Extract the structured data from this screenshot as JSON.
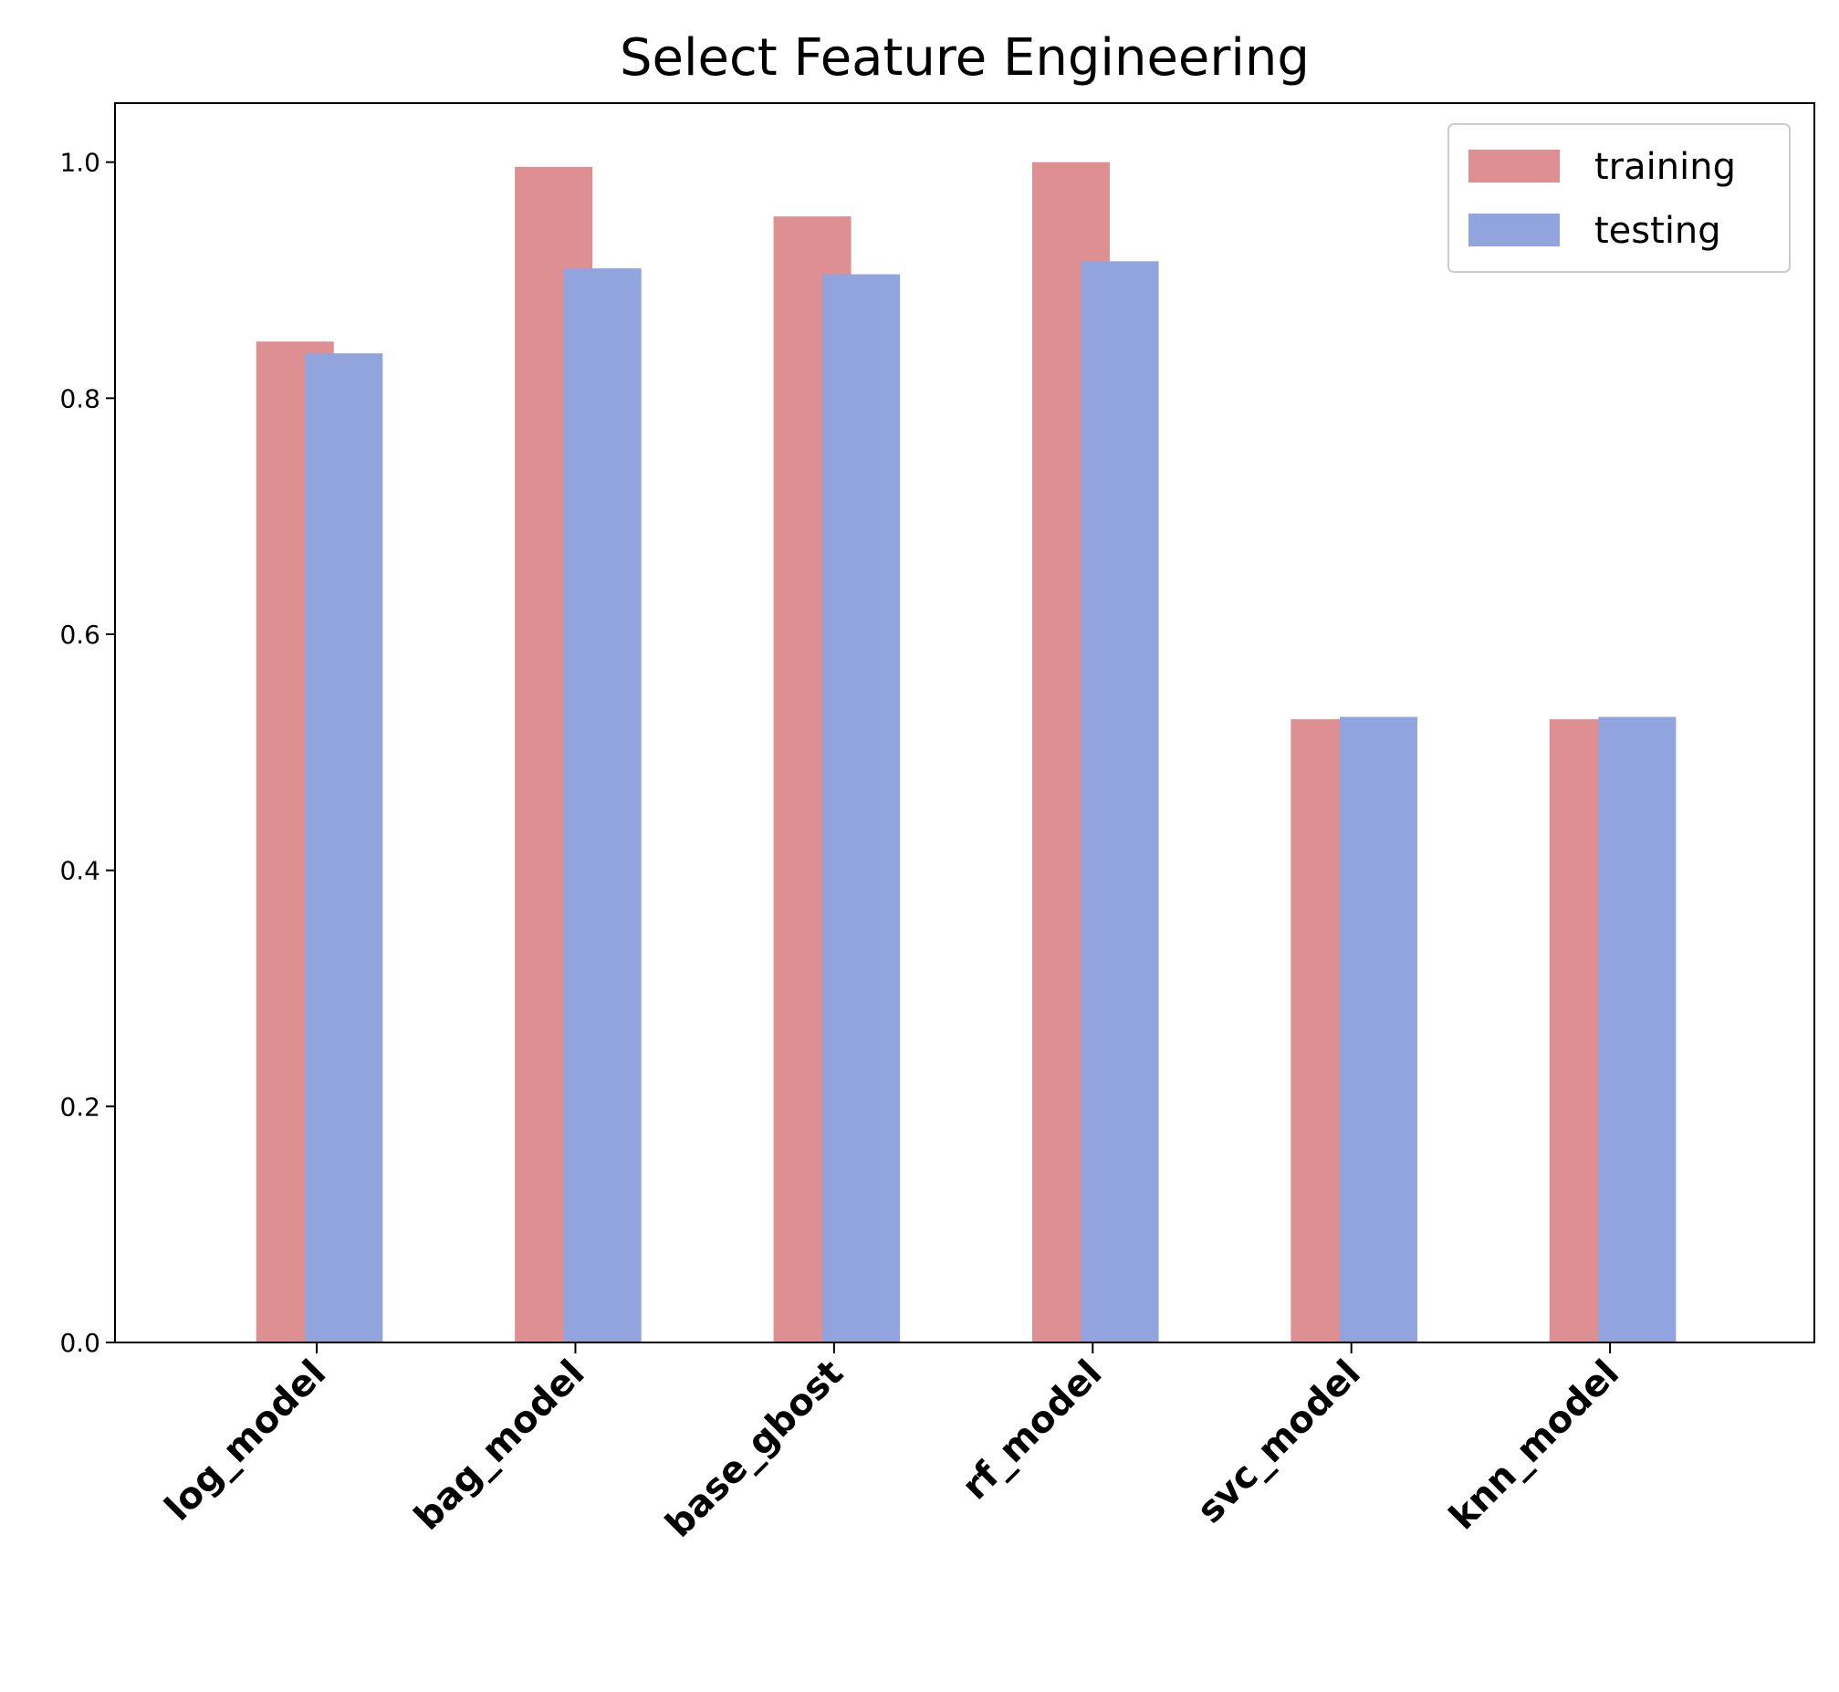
{
  "chart_data": {
    "type": "bar",
    "title": "Select Feature Engineering",
    "xlabel": "",
    "ylabel": "",
    "categories": [
      "log_model",
      "bag_model",
      "base_gbost",
      "rf_model",
      "svc_model",
      "knn_model"
    ],
    "series": [
      {
        "name": "training",
        "color": "#de8f91",
        "values": [
          0.848,
          0.996,
          0.954,
          1.0,
          0.528,
          0.528
        ]
      },
      {
        "name": "testing",
        "color": "#91a4dd",
        "values": [
          0.838,
          0.91,
          0.905,
          0.916,
          0.53,
          0.53
        ]
      }
    ],
    "ylim": [
      0,
      1.05
    ],
    "yticks": [
      0.0,
      0.2,
      0.4,
      0.6,
      0.8,
      1.0
    ],
    "ytick_labels": [
      "0.0",
      "0.2",
      "0.4",
      "0.6",
      "0.8",
      "1.0"
    ],
    "grid": false,
    "legend_position": "top-right"
  }
}
